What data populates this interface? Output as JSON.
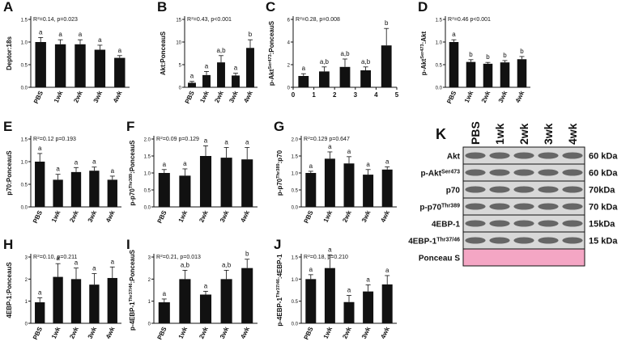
{
  "chart_data": [
    {
      "type": "bar",
      "panel": "A",
      "y_label": [
        "Deptor:18s"
      ],
      "annotation": [
        "R",
        "2",
        "=0.14, p=0.023"
      ],
      "categories": [
        "PBS",
        "1wk",
        "2wk",
        "3wk",
        "4wk"
      ],
      "values": [
        1.0,
        0.95,
        0.95,
        0.83,
        0.65
      ],
      "errors": [
        0.1,
        0.1,
        0.1,
        0.1,
        0.05
      ],
      "letters": [
        "a",
        "a",
        "a",
        "a",
        "a"
      ],
      "ylim": [
        0,
        1.5
      ],
      "yticks": [
        {
          "value": 0,
          "label": "0.0"
        },
        0.5,
        {
          "value": 1,
          "label": "1.0"
        },
        1.5
      ],
      "color": "#111111"
    },
    {
      "type": "bar",
      "panel": "B",
      "y_label": [
        "Akt:PonceauS"
      ],
      "annotation": [
        "R",
        "2",
        "=0.43, p<0.001"
      ],
      "categories": [
        "PBS",
        "1wk",
        "2wk",
        "3wk",
        "4wk"
      ],
      "values": [
        1.0,
        2.7,
        5.5,
        2.6,
        8.7
      ],
      "errors": [
        0.3,
        0.8,
        1.5,
        0.5,
        1.8
      ],
      "letters": [
        "a",
        "a",
        "a,b",
        "a",
        "b"
      ],
      "ylim": [
        0,
        15
      ],
      "yticks": [
        0,
        5,
        10,
        15
      ],
      "color": "#111111"
    },
    {
      "type": "bar",
      "panel": "C",
      "y_label": [
        "p-Akt",
        "Ser473",
        ":PonceauS"
      ],
      "annotation": [
        "R",
        "2",
        "=0.28, p=0.008"
      ],
      "x": [
        0.5,
        1.5,
        2.5,
        3.5,
        4.5
      ],
      "values": [
        1.0,
        1.4,
        1.8,
        1.5,
        3.7
      ],
      "errors": [
        0.2,
        0.4,
        0.7,
        0.3,
        1.5
      ],
      "letters": [
        "a",
        "a,b",
        "a,b",
        "a,b",
        "b"
      ],
      "xlim": [
        0,
        5
      ],
      "xticks": [
        0,
        1,
        2,
        3,
        4,
        5
      ],
      "ylim": [
        0,
        6
      ],
      "yticks": [
        0,
        2,
        4,
        6
      ],
      "color": "#111111"
    },
    {
      "type": "bar",
      "panel": "D",
      "y_label": [
        "p-Akt",
        "Ser473",
        ":Akt"
      ],
      "annotation": [
        "R",
        "2",
        "=0.46 p<0.001"
      ],
      "categories": [
        "PBS",
        "1wk",
        "2wk",
        "3wk",
        "4wk"
      ],
      "values": [
        1.0,
        0.56,
        0.52,
        0.55,
        0.62
      ],
      "errors": [
        0.05,
        0.05,
        0.03,
        0.04,
        0.06
      ],
      "letters": [
        "a",
        "b",
        "b",
        "b",
        "b"
      ],
      "ylim": [
        0,
        1.5
      ],
      "yticks": [
        {
          "value": 0,
          "label": "0.0"
        },
        0.5,
        {
          "value": 1,
          "label": "1.0"
        },
        1.5
      ],
      "color": "#111111"
    },
    {
      "type": "bar",
      "panel": "E",
      "y_label": [
        "p70:PonceauS"
      ],
      "annotation": [
        "R",
        "2",
        "=0.12 p=0.193"
      ],
      "categories": [
        "PBS",
        "1wk",
        "2wk",
        "3wk",
        "4wk"
      ],
      "values": [
        1.0,
        0.6,
        0.77,
        0.8,
        0.6
      ],
      "errors": [
        0.18,
        0.12,
        0.1,
        0.08,
        0.08
      ],
      "letters": [
        "a",
        "a",
        "a",
        "a",
        "a"
      ],
      "ylim": [
        0,
        1.5
      ],
      "yticks": [
        {
          "value": 0,
          "label": "0.0"
        },
        0.5,
        {
          "value": 1,
          "label": "1.0"
        },
        1.5
      ],
      "color": "#111111"
    },
    {
      "type": "bar",
      "panel": "F",
      "y_label": [
        "p-p70",
        "Thr389",
        ":PonceauS"
      ],
      "annotation": [
        "R",
        "2",
        "=0.09 p=0.129"
      ],
      "categories": [
        "PBS",
        "1wk",
        "2wk",
        "3wk",
        "4wk"
      ],
      "values": [
        1.0,
        0.92,
        1.5,
        1.45,
        1.4
      ],
      "errors": [
        0.1,
        0.2,
        0.3,
        0.3,
        0.35
      ],
      "letters": [
        "a",
        "a",
        "a",
        "a",
        "a"
      ],
      "ylim": [
        0,
        2
      ],
      "yticks": [
        {
          "value": 0,
          "label": "0.0"
        },
        0.5,
        {
          "value": 1,
          "label": "1.0"
        },
        1.5,
        {
          "value": 2,
          "label": "2.0"
        }
      ],
      "color": "#111111"
    },
    {
      "type": "bar",
      "panel": "G",
      "y_label": [
        "p-p70",
        "Thr389",
        ":p70"
      ],
      "annotation": [
        "R",
        "2",
        "=0.129 p=0.647"
      ],
      "categories": [
        "PBS",
        "1wk",
        "2wk",
        "3wk",
        "4wk"
      ],
      "values": [
        1.0,
        1.42,
        1.28,
        0.95,
        1.1
      ],
      "errors": [
        0.05,
        0.2,
        0.2,
        0.15,
        0.08
      ],
      "letters": [
        "a",
        "a",
        "a",
        "a",
        "a"
      ],
      "ylim": [
        0,
        2
      ],
      "yticks": [
        {
          "value": 0,
          "label": "0.0"
        },
        0.5,
        {
          "value": 1,
          "label": "1.0"
        },
        1.5,
        {
          "value": 2,
          "label": "2.0"
        }
      ],
      "color": "#111111"
    },
    {
      "type": "bar",
      "panel": "H",
      "y_label": [
        "4EBP-1:PonceauS"
      ],
      "annotation": [
        "R",
        "2",
        "=0.10, p=0.211"
      ],
      "categories": [
        "PBS",
        "1wk",
        "2wk",
        "3wk",
        "4wk"
      ],
      "values": [
        0.95,
        2.1,
        2.0,
        1.75,
        2.05
      ],
      "errors": [
        0.2,
        0.6,
        0.5,
        0.5,
        0.5
      ],
      "letters": [
        "a",
        "a",
        "a",
        "a",
        "a"
      ],
      "ylim": [
        0,
        3
      ],
      "yticks": [
        0,
        1,
        2,
        3
      ],
      "color": "#111111"
    },
    {
      "type": "bar",
      "panel": "I",
      "y_label": [
        "p-4EBP-1",
        "Thr37/46",
        ":PonceauS"
      ],
      "annotation": [
        "R",
        "2",
        "=0.21, p=0.013"
      ],
      "categories": [
        "PBS",
        "1wk",
        "2wk",
        "3wk",
        "4wk"
      ],
      "values": [
        0.95,
        2.0,
        1.3,
        2.0,
        2.5
      ],
      "errors": [
        0.15,
        0.4,
        0.15,
        0.4,
        0.4
      ],
      "letters": [
        "a",
        "a,b",
        "a",
        "a,b",
        "b"
      ],
      "ylim": [
        0,
        3
      ],
      "yticks": [
        0,
        1,
        2,
        3
      ],
      "color": "#111111"
    },
    {
      "type": "bar",
      "panel": "J",
      "y_label": [
        "p-4EBP-1",
        "Thr37/46",
        ":4EBP-1"
      ],
      "annotation": [
        "R",
        "2",
        "=0.18, p=0.210"
      ],
      "categories": [
        "PBS",
        "1wk",
        "2wk",
        "3wk",
        "4wk"
      ],
      "values": [
        1.0,
        1.25,
        0.48,
        0.72,
        0.88
      ],
      "errors": [
        0.1,
        0.3,
        0.15,
        0.15,
        0.2
      ],
      "letters": [
        "a",
        "a",
        "a",
        "a",
        "a"
      ],
      "ylim": [
        0,
        1.5
      ],
      "yticks": [
        {
          "value": 0,
          "label": "0.0"
        },
        0.5,
        {
          "value": 1,
          "label": "1.0"
        },
        1.5
      ],
      "color": "#111111"
    }
  ],
  "blot": {
    "panel": "K",
    "columns": [
      "PBS",
      "1wk",
      "2wk",
      "3wk",
      "4wk"
    ],
    "rows": [
      {
        "label": [
          "Akt"
        ],
        "size": "60 kDa"
      },
      {
        "label": [
          "p-Akt",
          "Ser473"
        ],
        "size": "60 kDa"
      },
      {
        "label": [
          "p70"
        ],
        "size": "70kDa"
      },
      {
        "label": [
          "p-p70",
          "Thr389"
        ],
        "size": "70 kDa"
      },
      {
        "label": [
          "4EBP-1"
        ],
        "size": "15kDa"
      },
      {
        "label": [
          "4EBP-1",
          "Thr37/46"
        ],
        "size": "15 kDa"
      },
      {
        "label": [
          "Ponceau S"
        ]
      }
    ]
  }
}
